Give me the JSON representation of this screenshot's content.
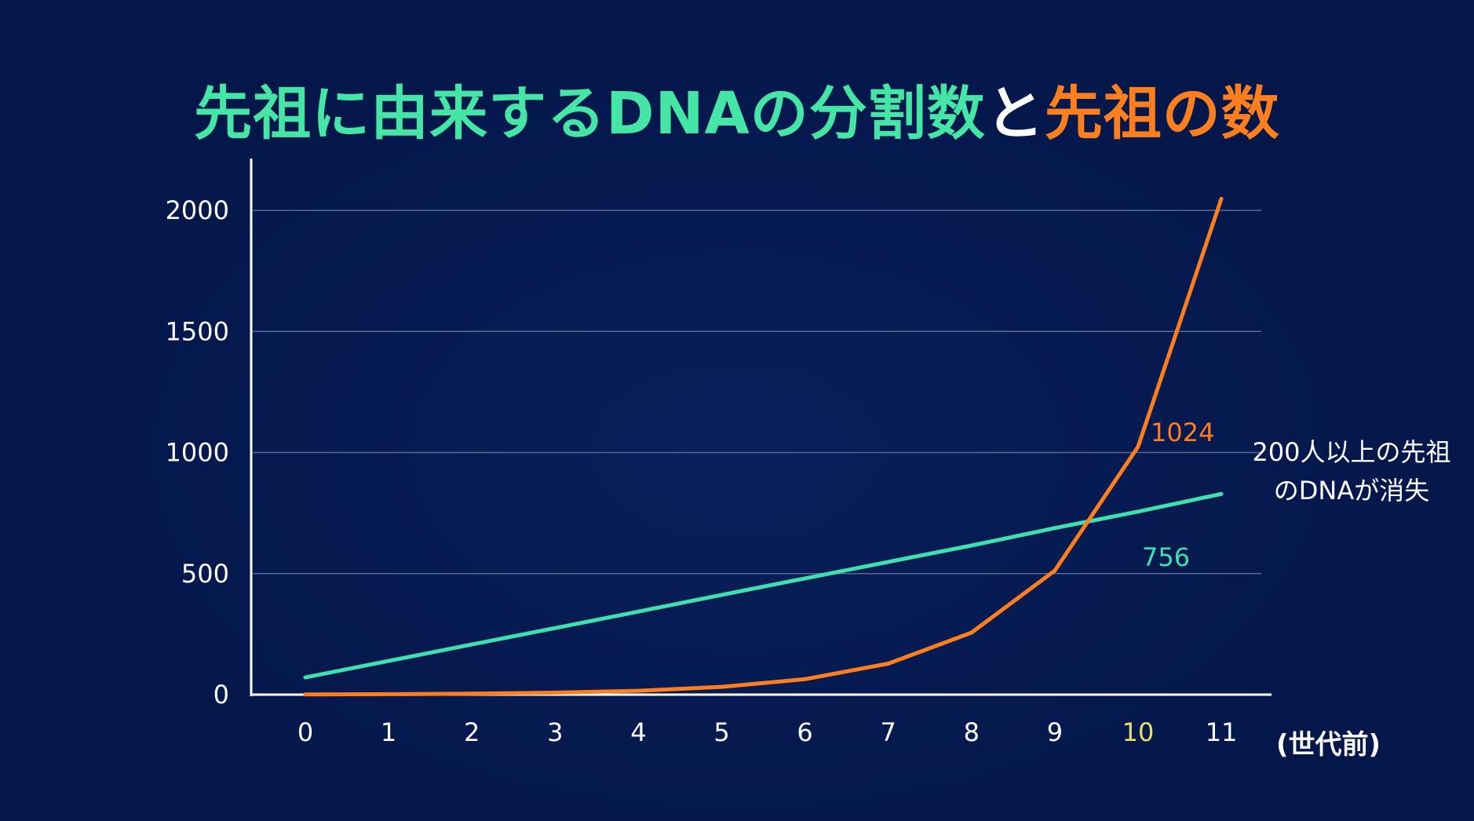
{
  "title": {
    "part1": "先祖に由来するDNAの分割数",
    "part2": "と",
    "part3": "先祖の数"
  },
  "colors": {
    "background": "#03174a",
    "title_green": "#45e6a5",
    "title_orange": "#ff7f1e",
    "dna_line": "#3ee0b0",
    "ancestor_line": "#ff7f1e",
    "gridline": "#5a6a94",
    "axis": "#ffffff",
    "highlight_tick": "#e9e267"
  },
  "chart_data": {
    "type": "line",
    "x": [
      "0",
      "1",
      "2",
      "3",
      "4",
      "5",
      "6",
      "7",
      "8",
      "9",
      "10",
      "11"
    ],
    "x_unit_label": "(世代前)",
    "highlight_x": "10",
    "ylim": [
      0,
      2200
    ],
    "yticks": [
      0,
      500,
      1000,
      1500,
      2000
    ],
    "grid": true,
    "series": [
      {
        "key": "dna",
        "values": [
          71,
          139,
          207,
          275,
          343,
          412,
          480,
          548,
          616,
          688,
          756,
          829
        ],
        "color": "#3ee0b0",
        "label_index": 10,
        "label_text": "756"
      },
      {
        "key": "ancestors",
        "values": [
          1,
          2,
          4,
          8,
          16,
          32,
          64,
          128,
          256,
          512,
          1024,
          2048
        ],
        "color": "#ff7f1e",
        "label_index": 10,
        "label_text": "1024"
      }
    ],
    "annotation": {
      "line1": "200人以上の先祖",
      "line2": "のDNAが消失"
    }
  }
}
